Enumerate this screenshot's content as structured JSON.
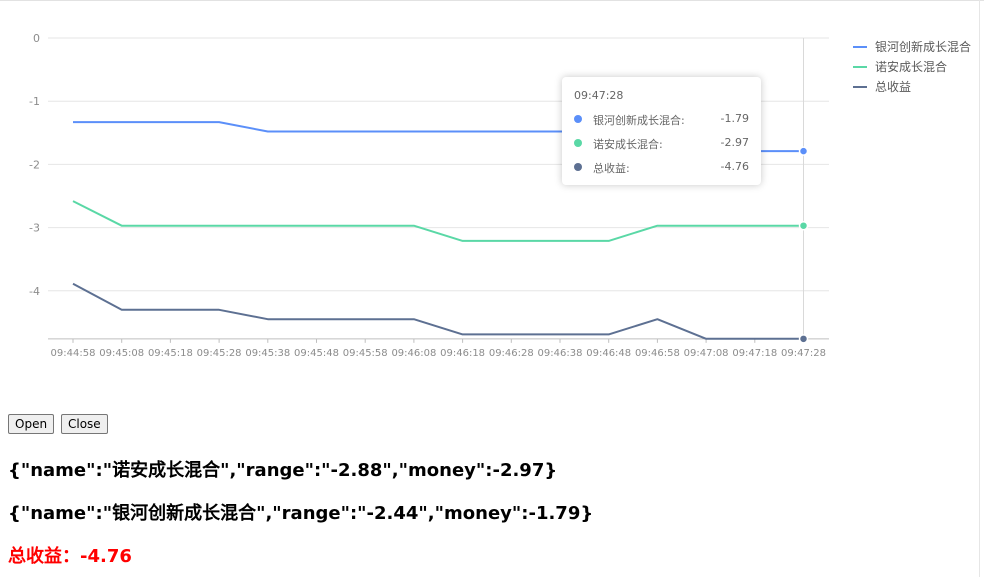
{
  "chart_data": {
    "type": "line",
    "categories": [
      "09:44:58",
      "09:45:08",
      "09:45:18",
      "09:45:28",
      "09:45:38",
      "09:45:48",
      "09:45:58",
      "09:46:08",
      "09:46:18",
      "09:46:28",
      "09:46:38",
      "09:46:48",
      "09:46:58",
      "09:47:08",
      "09:47:18",
      "09:47:28"
    ],
    "ylim": [
      -4.76,
      0
    ],
    "yticks": [
      0,
      -1,
      -2,
      -3,
      -4
    ],
    "grid": true,
    "legend_position": "top-right",
    "series": [
      {
        "name": "银河创新成长混合",
        "color": "#5b8ff9",
        "values": [
          -1.33,
          -1.33,
          -1.33,
          -1.33,
          -1.48,
          -1.48,
          -1.48,
          -1.48,
          -1.48,
          -1.48,
          -1.48,
          -1.48,
          -1.48,
          -1.79,
          -1.79,
          -1.79
        ]
      },
      {
        "name": "诺安成长混合",
        "color": "#5ad8a6",
        "values": [
          -2.58,
          -2.97,
          -2.97,
          -2.97,
          -2.97,
          -2.97,
          -2.97,
          -2.97,
          -3.21,
          -3.21,
          -3.21,
          -3.21,
          -2.97,
          -2.97,
          -2.97,
          -2.97
        ]
      },
      {
        "name": "总收益",
        "color": "#5d7092",
        "values": [
          -3.89,
          -4.3,
          -4.3,
          -4.3,
          -4.45,
          -4.45,
          -4.45,
          -4.45,
          -4.69,
          -4.69,
          -4.69,
          -4.69,
          -4.45,
          -4.76,
          -4.76,
          -4.76
        ]
      }
    ],
    "tooltip": {
      "title": "09:47:28",
      "rows": [
        {
          "name": "银河创新成长混合:",
          "value": "-1.79",
          "color": "#5b8ff9"
        },
        {
          "name": "诺安成长混合:",
          "value": "-2.97",
          "color": "#5ad8a6"
        },
        {
          "name": "总收益:",
          "value": "-4.76",
          "color": "#5d7092"
        }
      ]
    }
  },
  "controls": {
    "open_label": "Open",
    "close_label": "Close"
  },
  "output": {
    "line1": "{\"name\":\"诺安成长混合\",\"range\":\"-2.88\",\"money\":-2.97}",
    "line2": "{\"name\":\"银河创新成长混合\",\"range\":\"-2.44\",\"money\":-1.79}",
    "total": "总收益：-4.76"
  },
  "colors": {
    "total_text": "#ff0000"
  }
}
